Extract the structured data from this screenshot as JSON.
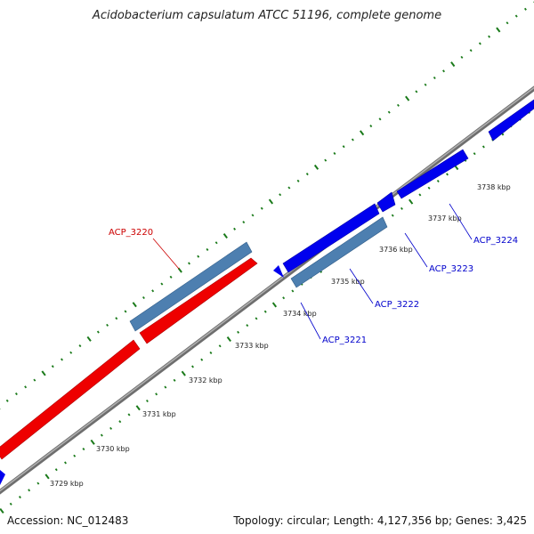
{
  "title": "Acidobacterium capsulatum ATCC 51196, complete genome",
  "footer": {
    "accession": "Accession: NC_012483",
    "summary": "Topology: circular; Length: 4,127,356 bp; Genes: 3,425"
  },
  "colors": {
    "backbone": "#7a7a7a",
    "tick": "#1a7a1a",
    "forward_gene": "#0000ee",
    "highlight_gene": "#4d7fb0",
    "reverse_gene": "#ee0000",
    "label_blue": "#0000cc",
    "label_red": "#cc0000"
  },
  "kbp_labels": [
    {
      "text": "3729 kbp",
      "kbp": 3729
    },
    {
      "text": "3730 kbp",
      "kbp": 3730
    },
    {
      "text": "3731 kbp",
      "kbp": 3731
    },
    {
      "text": "3732 kbp",
      "kbp": 3732
    },
    {
      "text": "3733 kbp",
      "kbp": 3733
    },
    {
      "text": "3734 kbp",
      "kbp": 3734
    },
    {
      "text": "3735 kbp",
      "kbp": 3735
    },
    {
      "text": "3736 kbp",
      "kbp": 3736
    },
    {
      "text": "3737 kbp",
      "kbp": 3737
    },
    {
      "text": "3738 kbp",
      "kbp": 3738
    }
  ],
  "gene_labels": [
    {
      "text": "ACP_3220",
      "color": "red"
    },
    {
      "text": "ACP_3221",
      "color": "blue"
    },
    {
      "text": "ACP_3222",
      "color": "blue"
    },
    {
      "text": "ACP_3223",
      "color": "blue"
    },
    {
      "text": "ACP_3224",
      "color": "blue"
    }
  ]
}
